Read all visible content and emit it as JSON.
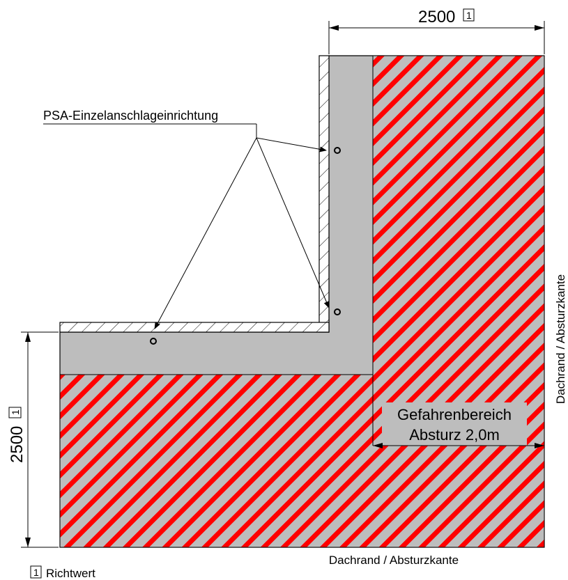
{
  "dimensions": {
    "top_value": "2500",
    "left_value": "2500",
    "note_marker": "1"
  },
  "labels": {
    "anchor_device": "PSA-Einzelanschlageinrichtung",
    "hazard_line1": "Gefahrenbereich",
    "hazard_line2": "Absturz 2,0m",
    "edge_right": "Dachrand / Absturzkante",
    "edge_bottom": "Dachrand / Absturzkante"
  },
  "legend": {
    "marker": "1",
    "text": "Richtwert"
  },
  "colors": {
    "hazard_stripe": "#ff0000",
    "roof_surface": "#bdbdbd",
    "line": "#000000"
  }
}
